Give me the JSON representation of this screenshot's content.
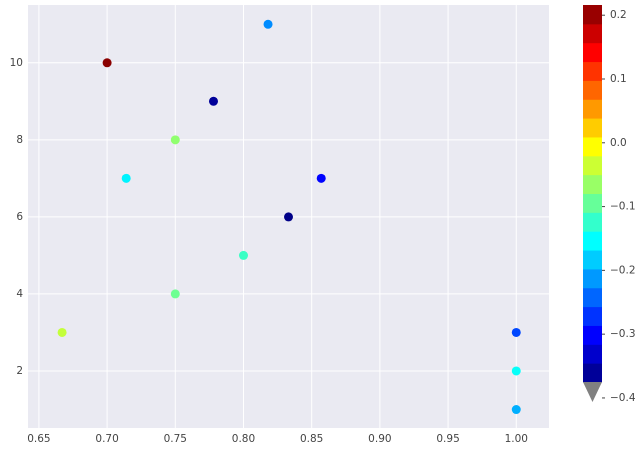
{
  "chart_data": {
    "type": "scatter",
    "x": [
      0.7,
      0.818,
      0.778,
      0.75,
      0.714,
      0.857,
      0.833,
      0.8,
      0.75,
      0.667,
      1.0,
      1.0,
      1.0
    ],
    "y": [
      10,
      11,
      9,
      8,
      7,
      7,
      6,
      5,
      4,
      3,
      3,
      2,
      1
    ],
    "c": [
      0.21,
      -0.22,
      -0.36,
      -0.07,
      -0.16,
      -0.3,
      -0.37,
      -0.12,
      -0.09,
      -0.04,
      -0.26,
      -0.15,
      -0.2
    ],
    "xlim": [
      0.642,
      1.024
    ],
    "ylim": [
      0.52,
      11.5
    ],
    "xticks": [
      0.65,
      {
        "value": 0.7,
        "label": "0.70"
      },
      0.75,
      {
        "value": 0.8,
        "label": "0.80"
      },
      0.85,
      {
        "value": 0.9,
        "label": "0.90"
      },
      0.95,
      {
        "value": 1.0,
        "label": "1.00"
      }
    ],
    "yticks": [
      2,
      4,
      6,
      8,
      10
    ],
    "grid": true,
    "colorbar": {
      "cmap": "jet",
      "clim": [
        -0.375,
        0.216
      ],
      "extend": "min",
      "ticks": [
        0.2,
        0.1,
        {
          "value": 0.0,
          "label": "0.0"
        },
        {
          "value": -0.1,
          "label": "−0.1"
        },
        {
          "value": -0.2,
          "label": "−0.2"
        },
        {
          "value": -0.3,
          "label": "−0.3"
        },
        {
          "value": -0.4,
          "label": "−0.4"
        }
      ]
    }
  }
}
